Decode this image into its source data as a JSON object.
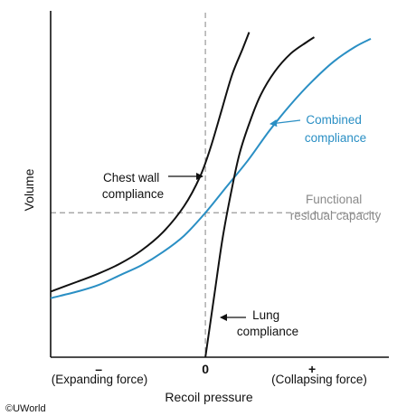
{
  "chart_data": {
    "type": "line",
    "xlabel": "Recoil pressure",
    "ylabel": "Volume",
    "x_ticks": [
      {
        "value": -1,
        "label": "–"
      },
      {
        "value": 0,
        "label": "0"
      },
      {
        "value": 1,
        "label": "+"
      }
    ],
    "x_tick_captions": {
      "left": "(Expanding force)",
      "right": "(Collapsing force)"
    },
    "xlim": [
      -1.45,
      1.55
    ],
    "ylim": [
      0,
      1
    ],
    "grid": false,
    "reference_lines": {
      "vertical_x": 0,
      "horizontal_label": "Functional residual capacity",
      "horizontal_y": 0.44
    },
    "series": [
      {
        "name": "Chest wall compliance",
        "color": "#111111",
        "points": [
          [
            -1.45,
            0.2
          ],
          [
            -1.2,
            0.23
          ],
          [
            -1.0,
            0.255
          ],
          [
            -0.8,
            0.285
          ],
          [
            -0.6,
            0.325
          ],
          [
            -0.4,
            0.38
          ],
          [
            -0.2,
            0.46
          ],
          [
            -0.05,
            0.55
          ],
          [
            0.05,
            0.64
          ],
          [
            0.15,
            0.75
          ],
          [
            0.25,
            0.86
          ],
          [
            0.35,
            0.94
          ],
          [
            0.41,
            0.99
          ]
        ]
      },
      {
        "name": "Combined compliance",
        "color": "#2a8fc4",
        "points": [
          [
            -1.45,
            0.18
          ],
          [
            -1.2,
            0.2
          ],
          [
            -1.0,
            0.22
          ],
          [
            -0.8,
            0.25
          ],
          [
            -0.6,
            0.28
          ],
          [
            -0.4,
            0.32
          ],
          [
            -0.2,
            0.37
          ],
          [
            0.0,
            0.44
          ],
          [
            0.2,
            0.52
          ],
          [
            0.4,
            0.6
          ],
          [
            0.6,
            0.69
          ],
          [
            0.8,
            0.77
          ],
          [
            1.0,
            0.84
          ],
          [
            1.2,
            0.9
          ],
          [
            1.4,
            0.945
          ],
          [
            1.55,
            0.97
          ]
        ]
      },
      {
        "name": "Lung compliance",
        "color": "#111111",
        "points": [
          [
            0.0,
            0.0
          ],
          [
            0.08,
            0.18
          ],
          [
            0.16,
            0.36
          ],
          [
            0.24,
            0.5
          ],
          [
            0.32,
            0.62
          ],
          [
            0.42,
            0.72
          ],
          [
            0.52,
            0.8
          ],
          [
            0.65,
            0.87
          ],
          [
            0.8,
            0.925
          ],
          [
            0.95,
            0.96
          ],
          [
            1.02,
            0.975
          ]
        ]
      }
    ],
    "annotations": [
      {
        "key": "chest",
        "lines": [
          "Chest wall",
          "compliance"
        ]
      },
      {
        "key": "combined",
        "lines": [
          "Combined",
          "compliance"
        ]
      },
      {
        "key": "frc",
        "lines": [
          "Functional",
          "residual capacity"
        ]
      },
      {
        "key": "lung",
        "lines": [
          "Lung",
          "compliance"
        ]
      }
    ]
  },
  "credit": "©UWorld",
  "colors": {
    "axis": "#111111",
    "reference": "#999999",
    "blue": "#2a8fc4"
  }
}
